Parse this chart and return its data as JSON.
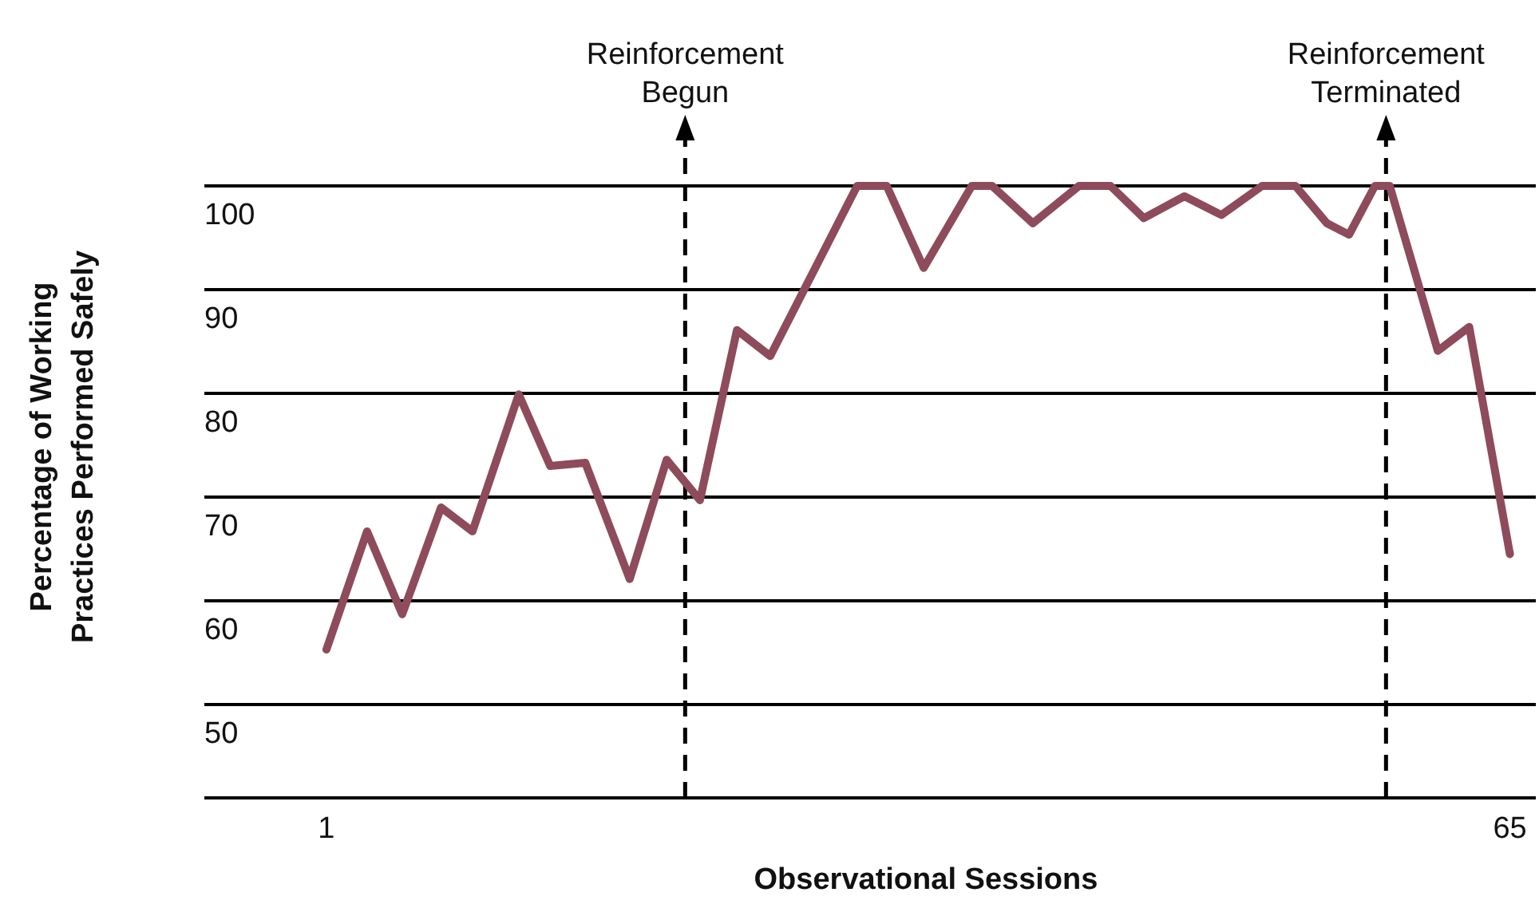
{
  "chart_data": {
    "type": "line",
    "xlabel": "Observational Sessions",
    "ylabel": "Percentage of Working\nPractices Performed Safely",
    "xlim": [
      -5.6,
      66.4
    ],
    "xticks": [
      1,
      65
    ],
    "ylim": [
      41,
      100
    ],
    "yticks": [
      50,
      60,
      70,
      80,
      90,
      100
    ],
    "grid": "y",
    "marker": "none",
    "line_style": "solid",
    "series": [
      {
        "color": "#8e4b5b",
        "x": [
          1,
          3.2,
          5.1,
          7.2,
          8.9,
          11.4,
          13.1,
          15,
          17.4,
          19.4,
          21.2,
          23.2,
          25,
          29.7,
          31.3,
          33.3,
          35.9,
          37,
          39.2,
          41.7,
          43.4,
          45.2,
          47.4,
          49.4,
          51.6,
          53.4,
          55.1,
          56.3,
          57.7,
          58.5,
          61.1,
          62.8,
          65
        ],
        "values": [
          55.3,
          66.7,
          58.7,
          69,
          66.7,
          79.9,
          73,
          73.3,
          62.1,
          73.6,
          69.7,
          86.1,
          83.6,
          100,
          100,
          92.1,
          100,
          100,
          96.4,
          100,
          100,
          96.9,
          99,
          97.2,
          100,
          100,
          96.4,
          95.3,
          100,
          100,
          84.1,
          86.4,
          64.5
        ]
      }
    ],
    "ref_lines": [
      {
        "axis": "x",
        "value": 20.4,
        "label": "Reinforcement\nBegun",
        "line_style": "dashed"
      },
      {
        "axis": "x",
        "value": 58.3,
        "label": "Reinforcement\nTerminated",
        "line_style": "dashed"
      }
    ]
  }
}
